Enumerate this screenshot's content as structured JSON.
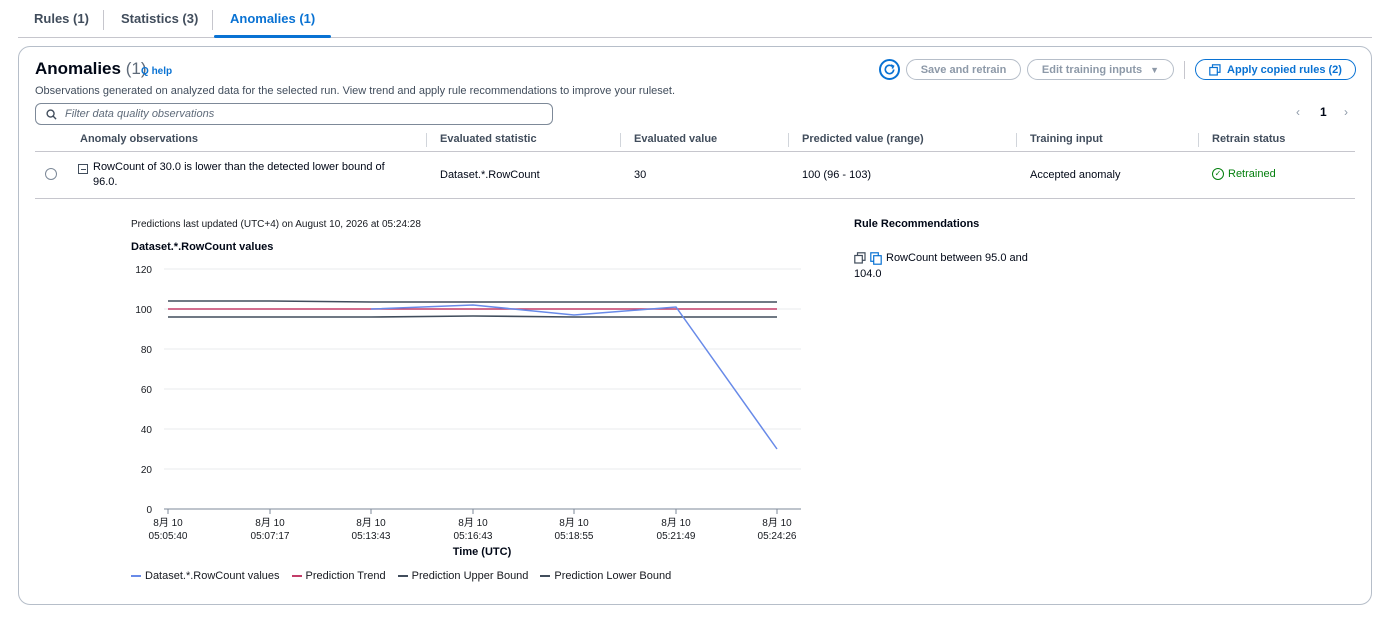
{
  "tabs": [
    {
      "label": "Rules (1)"
    },
    {
      "label": "Statistics (3)"
    },
    {
      "label": "Anomalies (1)"
    }
  ],
  "header": {
    "title": "Anomalies",
    "count": "(1)",
    "info": "help",
    "description": "Observations generated on analyzed data for the selected run. View trend and apply rule recommendations to improve your ruleset."
  },
  "actions": {
    "save_retrain": "Save and retrain",
    "edit_training": "Edit training inputs",
    "apply_rules": "Apply copied rules (2)"
  },
  "search": {
    "placeholder": "Filter data quality observations"
  },
  "pagination": {
    "page": "1"
  },
  "table": {
    "columns": [
      "Anomaly observations",
      "Evaluated statistic",
      "Evaluated value",
      "Predicted value (range)",
      "Training input",
      "Retrain status"
    ],
    "row": {
      "observation_line1": "RowCount of 30.0 is lower than the detected lower bound of",
      "observation_line2": "96.0.",
      "statistic": "Dataset.*.RowCount",
      "value": "30",
      "predicted": "100 (96 - 103)",
      "training_input": "Accepted anomaly",
      "status": "Retrained"
    }
  },
  "prediction_note": "Predictions last updated (UTC+4) on August 10, 2026 at 05:24:28",
  "recommendations": {
    "title": "Rule Recommendations",
    "rule": "RowCount between 95.0 and 104.0"
  },
  "colors": {
    "accent": "#0972d3",
    "success": "#037f0c",
    "series_values": "#688ae8",
    "series_trend": "#c33d69",
    "series_bounds": "#414d5c"
  },
  "chart_data": {
    "type": "line",
    "title": "Dataset.*.RowCount values",
    "xlabel": "Time (UTC)",
    "ylabel": "",
    "ylim": [
      0,
      120
    ],
    "yticks": [
      0,
      20,
      40,
      60,
      80,
      100,
      120
    ],
    "x": [
      [
        "8月 10",
        "05:05:40"
      ],
      [
        "8月 10",
        "05:07:17"
      ],
      [
        "8月 10",
        "05:13:43"
      ],
      [
        "8月 10",
        "05:16:43"
      ],
      [
        "8月 10",
        "05:18:55"
      ],
      [
        "8月 10",
        "05:21:49"
      ],
      [
        "8月 10",
        "05:24:26"
      ]
    ],
    "series": [
      {
        "name": "Dataset.*.RowCount values",
        "values": [
          null,
          null,
          100,
          102,
          97,
          101,
          30
        ],
        "color": "#688ae8"
      },
      {
        "name": "Prediction Trend",
        "values": [
          100,
          100,
          100,
          100,
          100,
          100,
          100
        ],
        "color": "#c33d69"
      },
      {
        "name": "Prediction Upper Bound",
        "values": [
          104,
          104,
          103.5,
          103.5,
          103.5,
          103.5,
          103.5
        ],
        "color": "#414d5c"
      },
      {
        "name": "Prediction Lower Bound",
        "values": [
          96,
          96,
          96,
          96.5,
          96,
          96,
          96
        ],
        "color": "#414d5c"
      }
    ],
    "grid": true,
    "legend": "bottom"
  }
}
